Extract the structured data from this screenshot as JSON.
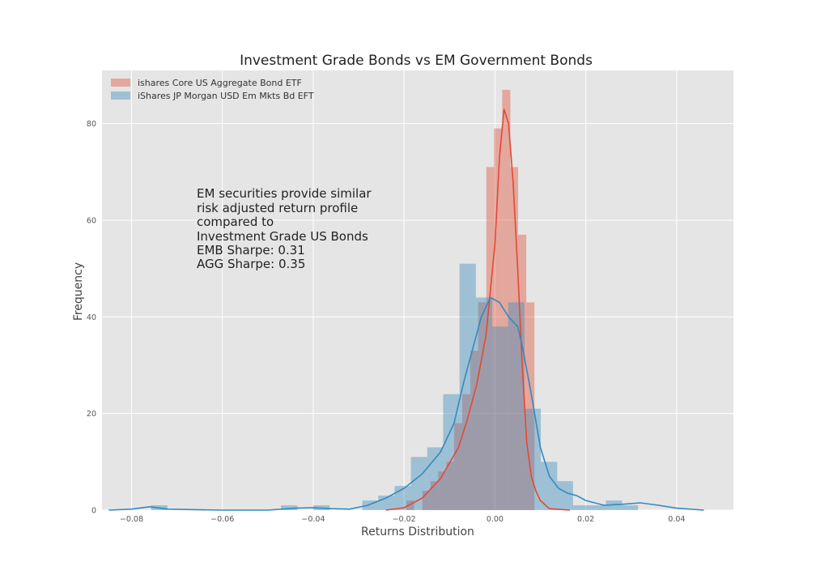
{
  "chart_data": {
    "type": "bar",
    "title": "Investment Grade Bonds vs EM Government Bonds",
    "xlabel": "Returns Distribution",
    "ylabel": "Frequency",
    "xlim": [
      -0.0865,
      0.0525
    ],
    "ylim": [
      0,
      91
    ],
    "x_ticks": [
      {
        "value": -0.08,
        "label": "−0.08"
      },
      {
        "value": -0.06,
        "label": "−0.06"
      },
      {
        "value": -0.04,
        "label": "−0.04"
      },
      {
        "value": -0.02,
        "label": "−0.02"
      },
      {
        "value": 0.0,
        "label": "0.00"
      },
      {
        "value": 0.02,
        "label": "0.02"
      },
      {
        "value": 0.04,
        "label": "0.04"
      }
    ],
    "y_ticks": [
      {
        "value": 0,
        "label": "0"
      },
      {
        "value": 20,
        "label": "20"
      },
      {
        "value": 40,
        "label": "40"
      },
      {
        "value": 60,
        "label": "60"
      },
      {
        "value": 80,
        "label": "80"
      }
    ],
    "grid": true,
    "legend_position": "top-left",
    "background": "#e5e5e5",
    "series": [
      {
        "name": "ishares Core US Aggregate Bond ETF",
        "kind": "histogram",
        "color": "#e24a33",
        "bin_edges": [
          -0.0195,
          -0.0178,
          -0.016,
          -0.0142,
          -0.0125,
          -0.0107,
          -0.009,
          -0.0072,
          -0.0054,
          -0.0037,
          -0.0019,
          -0.0002,
          0.0016,
          0.0034,
          0.0051,
          0.0069,
          0.0087
        ],
        "counts": [
          2,
          0,
          4,
          6,
          8,
          10,
          18,
          24,
          33,
          43,
          71,
          79,
          87,
          71,
          57,
          43
        ],
        "kde": [
          [
            -0.024,
            0.0
          ],
          [
            -0.02,
            0.5
          ],
          [
            -0.016,
            2.5
          ],
          [
            -0.012,
            6.5
          ],
          [
            -0.008,
            13
          ],
          [
            -0.006,
            19
          ],
          [
            -0.004,
            26
          ],
          [
            -0.002,
            36
          ],
          [
            0.0,
            55
          ],
          [
            0.001,
            73
          ],
          [
            0.002,
            83
          ],
          [
            0.003,
            80
          ],
          [
            0.004,
            68
          ],
          [
            0.005,
            50
          ],
          [
            0.006,
            30
          ],
          [
            0.007,
            14
          ],
          [
            0.008,
            7
          ],
          [
            0.009,
            4
          ],
          [
            0.01,
            2
          ],
          [
            0.012,
            0.3
          ],
          [
            0.0165,
            0.0
          ]
        ]
      },
      {
        "name": "iShares JP Morgan USD Em Mkts Bd EFT",
        "kind": "histogram",
        "color": "#348abd",
        "bin_edges": [
          -0.0757,
          -0.0721,
          -0.0686,
          -0.065,
          -0.0614,
          -0.0578,
          -0.0543,
          -0.0507,
          -0.0471,
          -0.0435,
          -0.04,
          -0.0364,
          -0.0328,
          -0.0292,
          -0.0257,
          -0.0221,
          -0.0185,
          -0.0149,
          -0.0114,
          -0.0078,
          -0.0042,
          -0.0006,
          0.0029,
          0.0065,
          0.0101,
          0.0137,
          0.0172,
          0.0208,
          0.0244,
          0.028,
          0.0315,
          0.0351
        ],
        "counts": [
          1,
          0,
          0,
          0,
          0,
          0,
          0,
          0,
          1,
          0,
          1,
          0,
          0,
          2,
          3,
          5,
          11,
          13,
          24,
          51,
          44,
          38,
          43,
          21,
          10,
          6,
          1,
          1,
          2,
          1,
          0
        ],
        "kde": [
          [
            -0.085,
            0.0
          ],
          [
            -0.08,
            0.2
          ],
          [
            -0.076,
            0.7
          ],
          [
            -0.072,
            0.2
          ],
          [
            -0.06,
            0.0
          ],
          [
            -0.05,
            0.0
          ],
          [
            -0.044,
            0.4
          ],
          [
            -0.04,
            0.5
          ],
          [
            -0.036,
            0.3
          ],
          [
            -0.032,
            0.2
          ],
          [
            -0.028,
            1.0
          ],
          [
            -0.024,
            2.5
          ],
          [
            -0.02,
            4.5
          ],
          [
            -0.016,
            7.5
          ],
          [
            -0.012,
            12
          ],
          [
            -0.009,
            18
          ],
          [
            -0.007,
            26
          ],
          [
            -0.005,
            33
          ],
          [
            -0.003,
            40
          ],
          [
            -0.001,
            44
          ],
          [
            0.001,
            43
          ],
          [
            0.003,
            40
          ],
          [
            0.005,
            38
          ],
          [
            0.006,
            34
          ],
          [
            0.008,
            24
          ],
          [
            0.01,
            13
          ],
          [
            0.012,
            7
          ],
          [
            0.014,
            4.5
          ],
          [
            0.016,
            3.5
          ],
          [
            0.018,
            3
          ],
          [
            0.02,
            2
          ],
          [
            0.024,
            1
          ],
          [
            0.028,
            1.2
          ],
          [
            0.032,
            1.5
          ],
          [
            0.036,
            1
          ],
          [
            0.04,
            0.4
          ],
          [
            0.046,
            0.0
          ]
        ]
      }
    ],
    "annotation": [
      "EM securities provide similar",
      "risk adjusted return profile",
      "compared to",
      "Investment Grade US Bonds",
      "EMB Sharpe: 0.31",
      "AGG Sharpe: 0.35"
    ]
  }
}
